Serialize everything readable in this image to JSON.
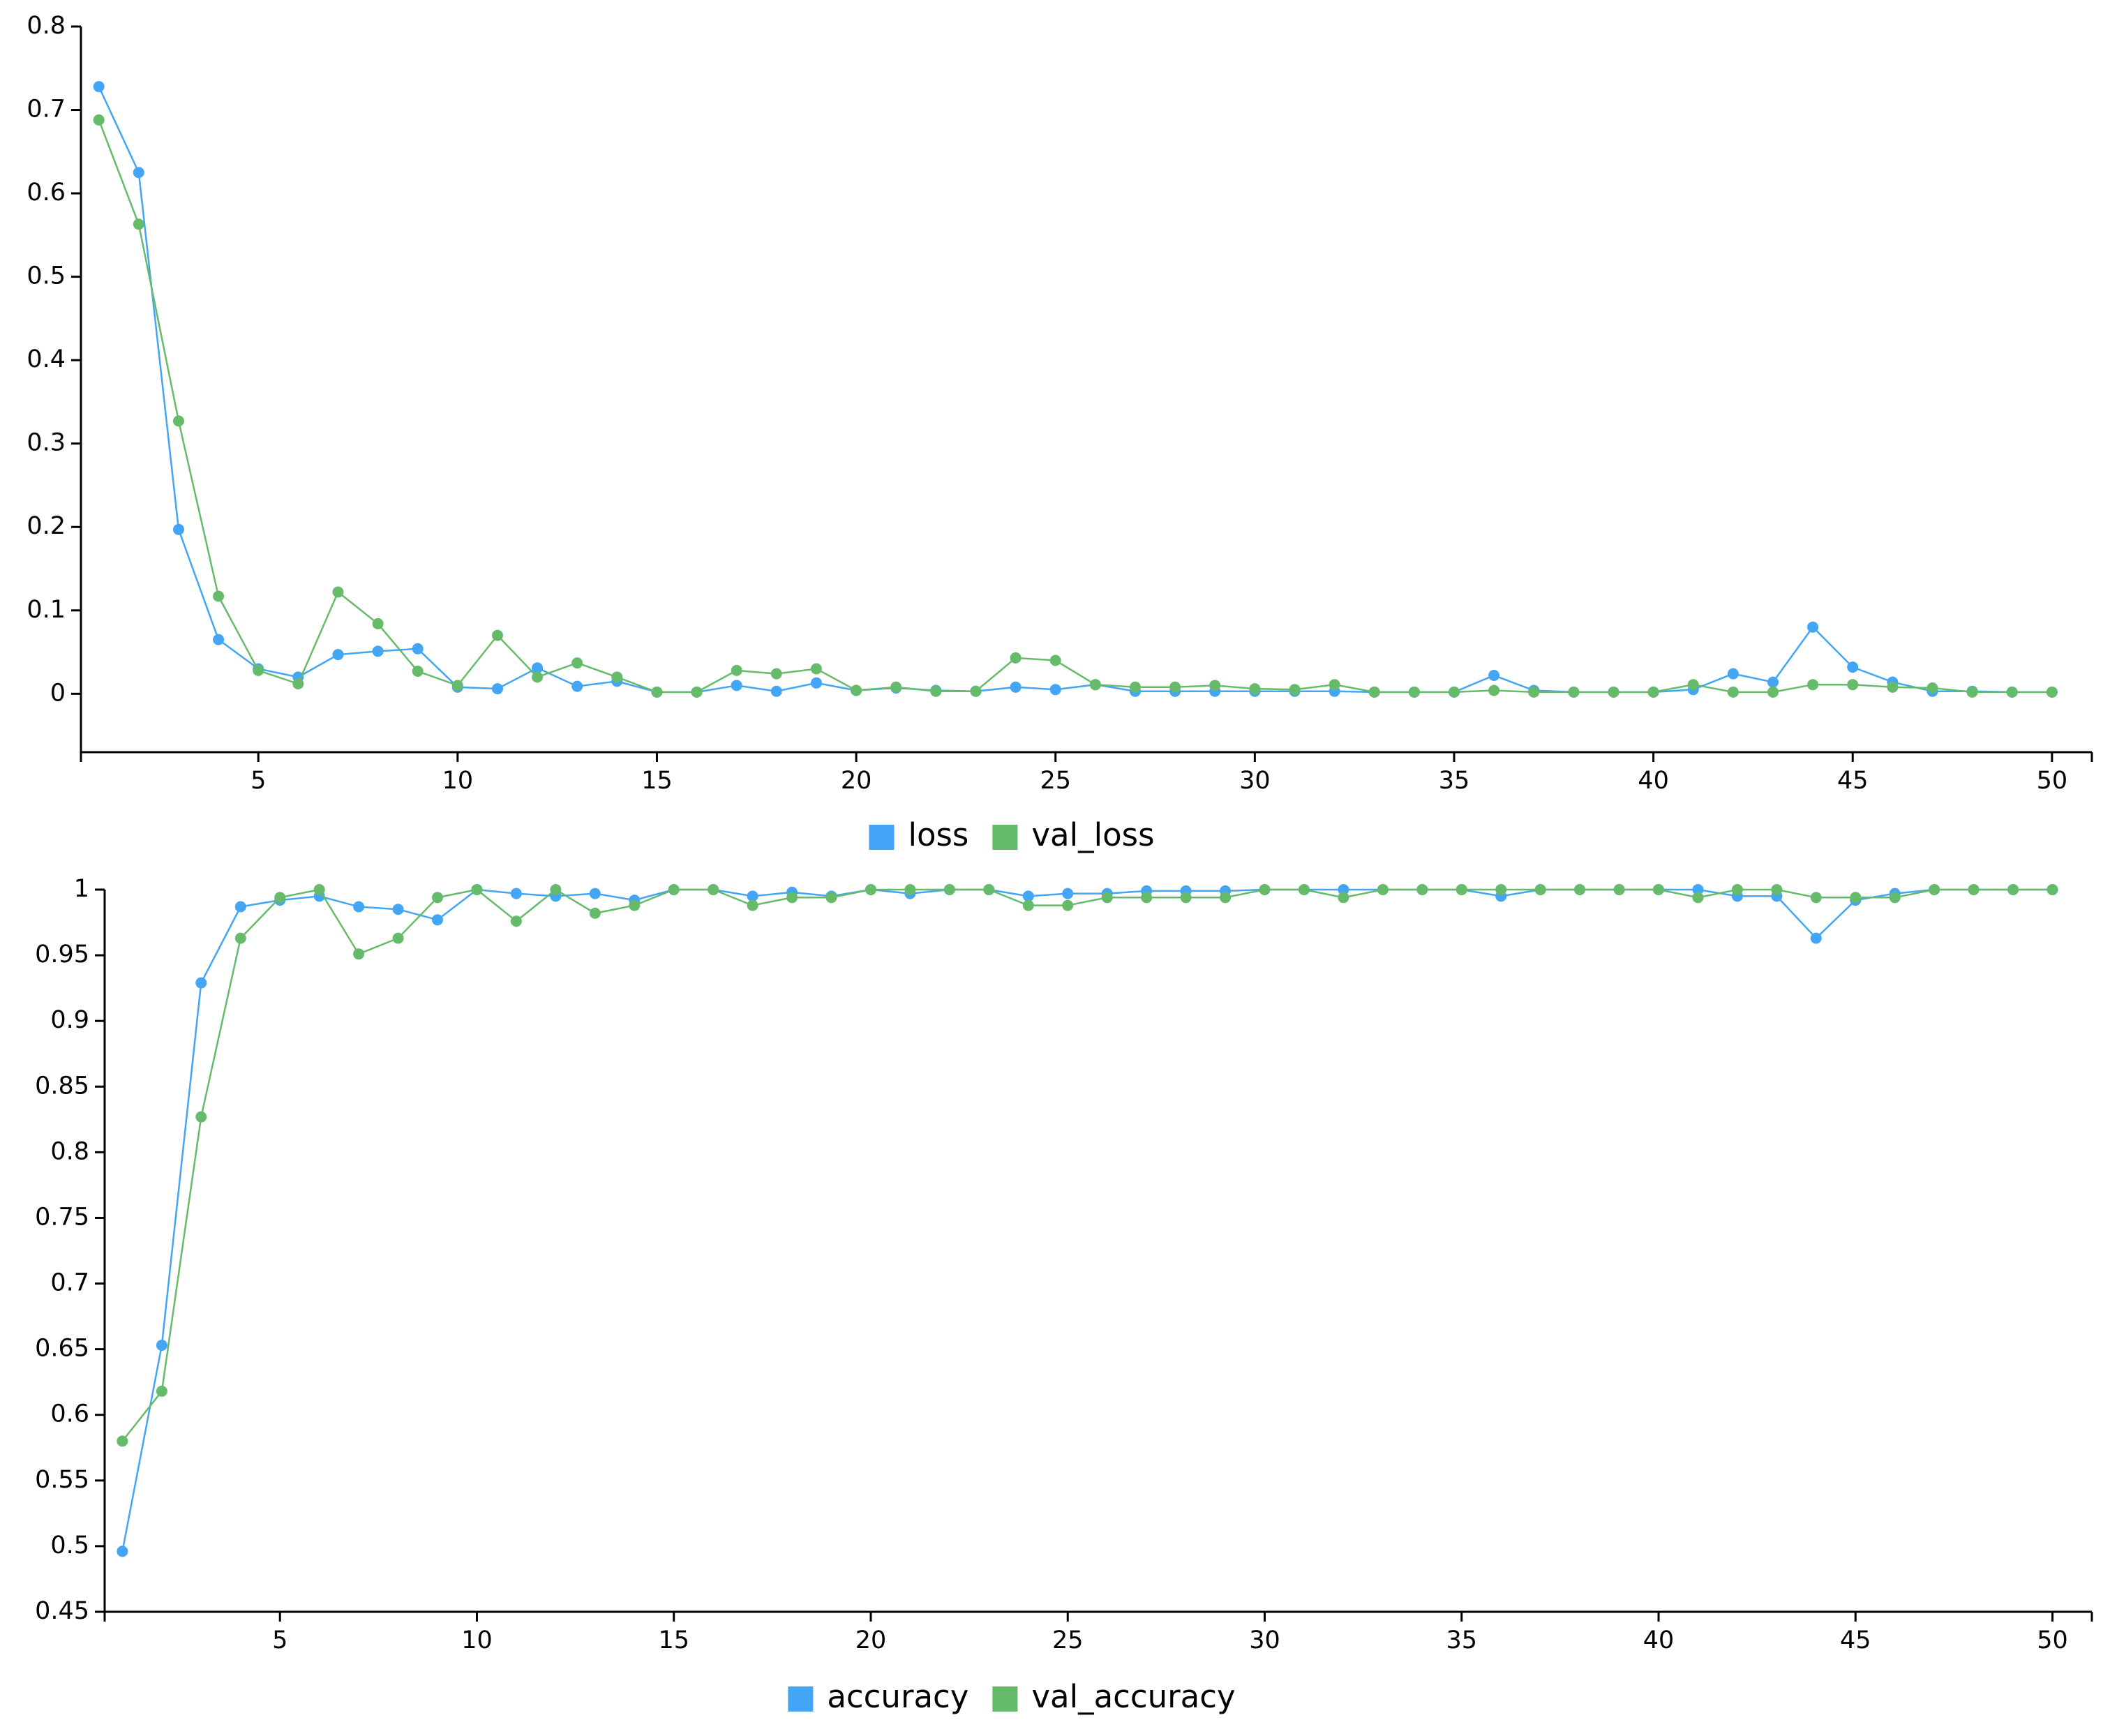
{
  "colors": {
    "loss": "#42a5f5",
    "val_loss": "#66bb6a",
    "accuracy": "#42a5f5",
    "val_accuracy": "#66bb6a",
    "axis": "#000000"
  },
  "chart_data": [
    {
      "type": "line",
      "x": [
        1,
        2,
        3,
        4,
        5,
        6,
        7,
        8,
        9,
        10,
        11,
        12,
        13,
        14,
        15,
        16,
        17,
        18,
        19,
        20,
        21,
        22,
        23,
        24,
        25,
        26,
        27,
        28,
        29,
        30,
        31,
        32,
        33,
        34,
        35,
        36,
        37,
        38,
        39,
        40,
        41,
        42,
        43,
        44,
        45,
        46,
        47,
        48,
        49,
        50
      ],
      "xlim": [
        0.55,
        51
      ],
      "ylim": [
        -0.07,
        0.8
      ],
      "xticks": [
        5,
        10,
        15,
        20,
        25,
        30,
        35,
        40,
        45,
        50
      ],
      "yticks": [
        0,
        0.1,
        0.2,
        0.3,
        0.4,
        0.5,
        0.6,
        0.7,
        0.8
      ],
      "ytick_labels": [
        "0",
        "0.1",
        "0.2",
        "0.3",
        "0.4",
        "0.5",
        "0.6",
        "0.7",
        "0.8"
      ],
      "grid": false,
      "legend": "bottom-center",
      "series": [
        {
          "name": "loss",
          "color": "#42a5f5",
          "values": [
            0.728,
            0.625,
            0.197,
            0.065,
            0.03,
            0.02,
            0.047,
            0.051,
            0.054,
            0.008,
            0.006,
            0.031,
            0.009,
            0.015,
            0.002,
            0.002,
            0.01,
            0.003,
            0.013,
            0.004,
            0.007,
            0.004,
            0.003,
            0.008,
            0.005,
            0.011,
            0.003,
            0.003,
            0.003,
            0.003,
            0.003,
            0.003,
            0.002,
            0.002,
            0.002,
            0.022,
            0.004,
            0.002,
            0.002,
            0.002,
            0.005,
            0.024,
            0.014,
            0.08,
            0.032,
            0.014,
            0.003,
            0.003,
            0.002,
            0.002
          ]
        },
        {
          "name": "val_loss",
          "color": "#66bb6a",
          "values": [
            0.688,
            0.563,
            0.327,
            0.117,
            0.028,
            0.012,
            0.122,
            0.084,
            0.027,
            0.01,
            0.07,
            0.02,
            0.037,
            0.02,
            0.002,
            0.002,
            0.028,
            0.024,
            0.03,
            0.004,
            0.008,
            0.003,
            0.003,
            0.043,
            0.04,
            0.011,
            0.008,
            0.008,
            0.01,
            0.006,
            0.005,
            0.011,
            0.002,
            0.002,
            0.002,
            0.004,
            0.002,
            0.002,
            0.002,
            0.002,
            0.011,
            0.002,
            0.002,
            0.011,
            0.011,
            0.008,
            0.007,
            0.002,
            0.002,
            0.002
          ]
        }
      ]
    },
    {
      "type": "line",
      "x": [
        1,
        2,
        3,
        4,
        5,
        6,
        7,
        8,
        9,
        10,
        11,
        12,
        13,
        14,
        15,
        16,
        17,
        18,
        19,
        20,
        21,
        22,
        23,
        24,
        25,
        26,
        27,
        28,
        29,
        30,
        31,
        32,
        33,
        34,
        35,
        36,
        37,
        38,
        39,
        40,
        41,
        42,
        43,
        44,
        45,
        46,
        47,
        48,
        49,
        50
      ],
      "xlim": [
        0.55,
        51
      ],
      "ylim": [
        0.45,
        1
      ],
      "xticks": [
        5,
        10,
        15,
        20,
        25,
        30,
        35,
        40,
        45,
        50
      ],
      "yticks": [
        0.45,
        0.5,
        0.55,
        0.6,
        0.65,
        0.7,
        0.75,
        0.8,
        0.85,
        0.9,
        0.95,
        1
      ],
      "ytick_labels": [
        "0.45",
        "0.5",
        "0.55",
        "0.6",
        "0.65",
        "0.7",
        "0.75",
        "0.8",
        "0.85",
        "0.9",
        "0.95",
        "1"
      ],
      "grid": false,
      "legend": "bottom-center",
      "series": [
        {
          "name": "accuracy",
          "color": "#42a5f5",
          "values": [
            0.496,
            0.653,
            0.929,
            0.987,
            0.992,
            0.995,
            0.987,
            0.985,
            0.977,
            1.0,
            0.997,
            0.995,
            0.997,
            0.992,
            1.0,
            1.0,
            0.995,
            0.998,
            0.995,
            1.0,
            0.997,
            1.0,
            1.0,
            0.995,
            0.997,
            0.997,
            0.999,
            0.999,
            0.999,
            1.0,
            1.0,
            1.0,
            1.0,
            1.0,
            1.0,
            0.995,
            1.0,
            1.0,
            1.0,
            1.0,
            1.0,
            0.995,
            0.995,
            0.963,
            0.992,
            0.997,
            1.0,
            1.0,
            1.0,
            1.0
          ]
        },
        {
          "name": "val_accuracy",
          "color": "#66bb6a",
          "values": [
            0.58,
            0.618,
            0.827,
            0.963,
            0.994,
            1.0,
            0.951,
            0.963,
            0.994,
            1.0,
            0.976,
            1.0,
            0.982,
            0.988,
            1.0,
            1.0,
            0.988,
            0.994,
            0.994,
            1.0,
            1.0,
            1.0,
            1.0,
            0.988,
            0.988,
            0.994,
            0.994,
            0.994,
            0.994,
            1.0,
            1.0,
            0.994,
            1.0,
            1.0,
            1.0,
            1.0,
            1.0,
            1.0,
            1.0,
            1.0,
            0.994,
            1.0,
            1.0,
            0.994,
            0.994,
            0.994,
            1.0,
            1.0,
            1.0,
            1.0
          ]
        }
      ]
    }
  ]
}
